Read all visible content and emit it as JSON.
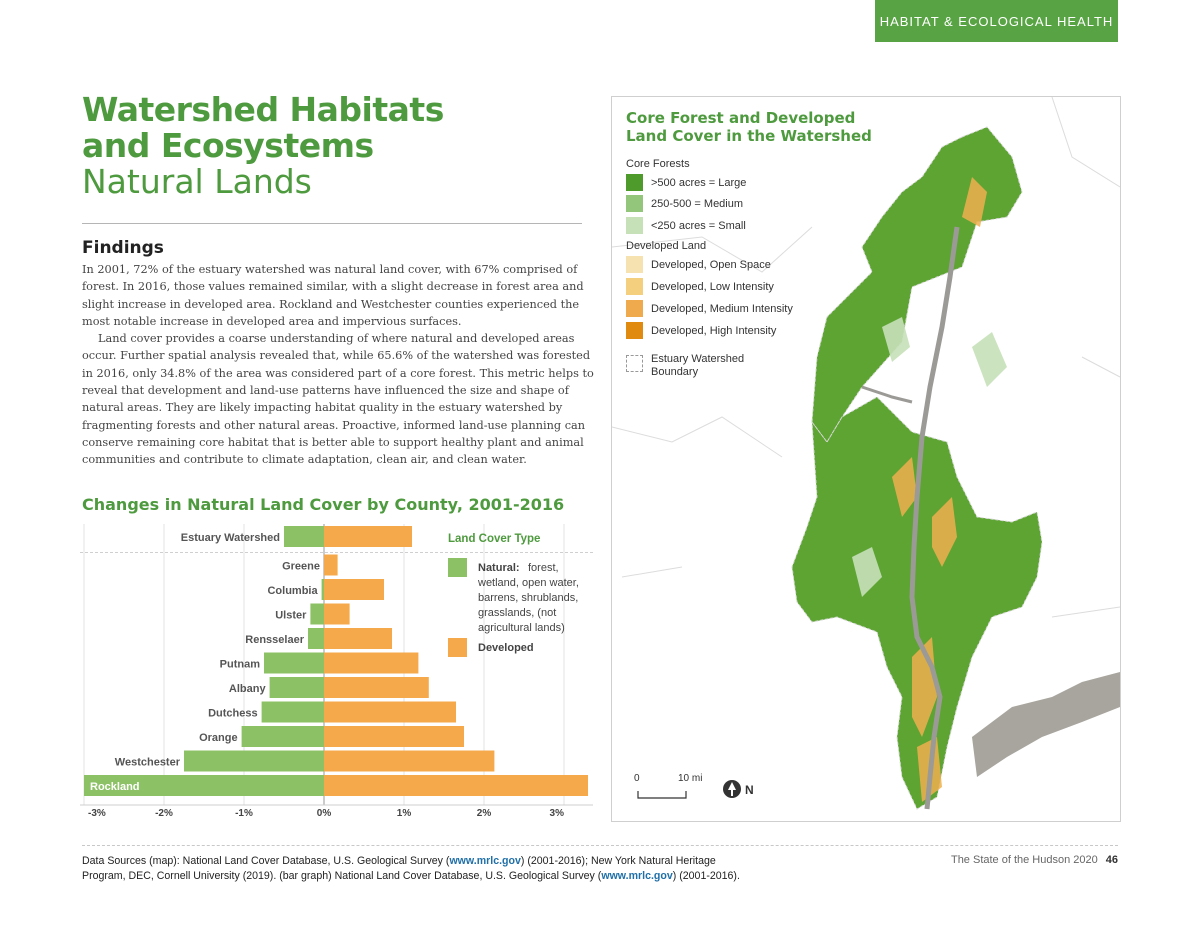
{
  "header": {
    "section_tab": "HABITAT & ECOLOGICAL HEALTH"
  },
  "title": {
    "line1": "Watershed Habitats",
    "line2": "and Ecosystems",
    "line3": "Natural Lands"
  },
  "findings": {
    "heading": "Findings",
    "para1": "In 2001, 72% of the estuary watershed was natural land cover, with 67% comprised of forest.  In 2016, those values remained similar, with a slight decrease in forest area and slight increase in developed area. Rockland and Westchester counties experienced the most notable increase in developed area and impervious surfaces.",
    "para2": "Land cover provides a coarse understanding of where natural and developed areas occur. Further spatial analysis revealed that, while 65.6% of the watershed was forested in 2016, only 34.8% of the area was considered part of a core forest. This metric helps to reveal that development and land-use patterns have influenced the size and shape of natural areas. They are likely impacting habitat quality in the estuary watershed by fragmenting forests and other natural areas. Proactive, informed land-use planning can conserve remaining core habitat that is better able to support healthy plant and animal communities and contribute to climate adaptation, clean air, and clean water."
  },
  "chart_data": {
    "type": "bar",
    "title": "Changes in Natural Land Cover by County, 2001-2016",
    "categories": [
      "Estuary Watershed",
      "Greene",
      "Columbia",
      "Ulster",
      "Rensselaer",
      "Putnam",
      "Albany",
      "Dutchess",
      "Orange",
      "Westchester",
      "Rockland"
    ],
    "series": [
      {
        "name": "Natural",
        "color": "#8cc265",
        "values": [
          -0.5,
          0,
          -0.03,
          -0.17,
          -0.2,
          -0.75,
          -0.68,
          -0.78,
          -1.03,
          -1.75,
          -3.0
        ]
      },
      {
        "name": "Developed",
        "color": "#f5a94a",
        "values": [
          1.1,
          0.17,
          0.75,
          0.32,
          0.85,
          1.18,
          1.31,
          1.65,
          1.75,
          2.13,
          3.3
        ]
      }
    ],
    "x_ticks": [
      "-3%",
      "-2%",
      "-1%",
      "0%",
      "1%",
      "2%",
      "3%"
    ],
    "xlim": [
      -3.0,
      3.3
    ],
    "legend": {
      "title": "Land Cover Type",
      "natural_label": "Natural:",
      "natural_desc": [
        "forest,",
        "wetland, open water,",
        "barrens, shrublands,",
        "grasslands, (not",
        "agricultural lands)"
      ],
      "developed_label": "Developed"
    }
  },
  "map": {
    "title_line1": "Core Forest and Developed",
    "title_line2": "Land Cover in the Watershed",
    "core_forests_heading": "Core Forests",
    "core_forests": [
      {
        "label": ">500 acres = Large",
        "color": "#4e9a2a"
      },
      {
        "label": "250-500 = Medium",
        "color": "#93c67a"
      },
      {
        "label": "<250 acres = Small",
        "color": "#c6e0b8"
      }
    ],
    "developed_heading": "Developed Land",
    "developed": [
      {
        "label": "Developed, Open Space",
        "color": "#f6e2b0"
      },
      {
        "label": "Developed, Low Intensity",
        "color": "#f3cf7e"
      },
      {
        "label": "Developed, Medium Intensity",
        "color": "#eeaa4c"
      },
      {
        "label": "Developed, High Intensity",
        "color": "#e08a10"
      }
    ],
    "boundary_label_line1": "Estuary Watershed",
    "boundary_label_line2": "Boundary",
    "scale_zero": "0",
    "scale_label": "10 mi",
    "north_label": "N"
  },
  "footer": {
    "src_line1_a": "Data Sources (map):  National Land Cover Database, U.S. Geological Survey (",
    "src_link1": "www.mrlc.gov",
    "src_line1_b": ") (2001-2016); New York Natural Heritage",
    "src_line2_a": "Program, DEC, Cornell University (2019). (bar graph)  National Land Cover Database,  U.S. Geological Survey (",
    "src_link2": "www.mrlc.gov",
    "src_line2_b": ") (2001-2016).",
    "publication": "The State of the Hudson 2020",
    "page_number": "46"
  }
}
